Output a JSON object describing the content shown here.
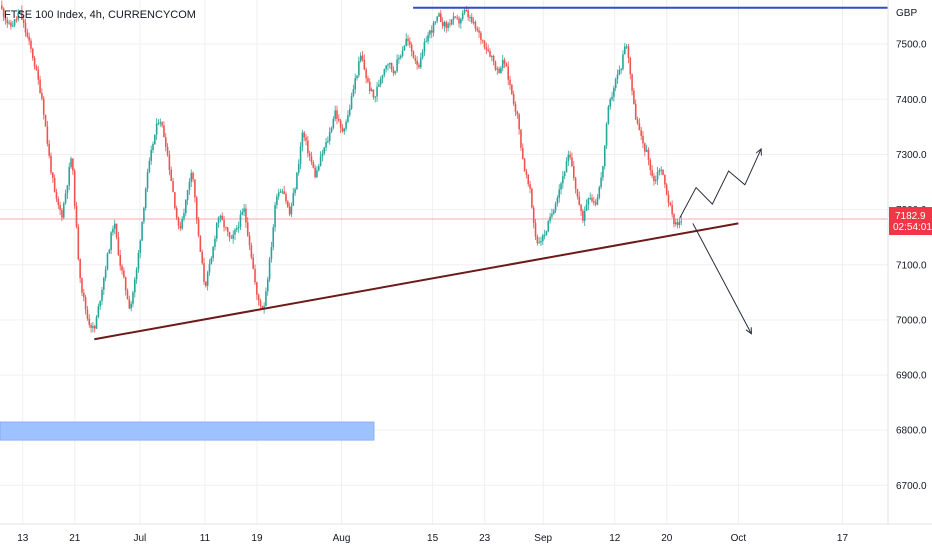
{
  "header": {
    "symbol_title": "FTSE 100 Index, 4h, CURRENCYCOM",
    "currency": "GBP"
  },
  "price_tag": {
    "value": "7182.9",
    "countdown": "02:54:01",
    "color": "#f23645"
  },
  "colors": {
    "up": "#26a69a",
    "down": "#ef5350",
    "trendline": "#6d1a1a",
    "resistance": "#2b4fc8",
    "zone": "#9ec1ff",
    "projection": "#2a2e39",
    "grid": "#eef0f3"
  },
  "chart_data": {
    "type": "candlestick",
    "title": "FTSE 100 Index, 4h, CURRENCYCOM",
    "ylim": [
      6630,
      7580
    ],
    "yticks": [
      7500,
      7400,
      7300,
      7200,
      7100,
      7000,
      6900,
      6800,
      6700
    ],
    "ytick_labels": [
      "7500.0",
      "7400.0",
      "7300.0",
      "7200.0",
      "7100.0",
      "7000.0",
      "6900.0",
      "6800.0",
      "6700.0"
    ],
    "xtick_labels": [
      {
        "label": "13",
        "t": 0
      },
      {
        "label": "21",
        "t": 8
      },
      {
        "label": "Jul",
        "t": 18
      },
      {
        "label": "11",
        "t": 28
      },
      {
        "label": "19",
        "t": 36
      },
      {
        "label": "Aug",
        "t": 49
      },
      {
        "label": "15",
        "t": 63
      },
      {
        "label": "23",
        "t": 71
      },
      {
        "label": "Sep",
        "t": 80
      },
      {
        "label": "12",
        "t": 91
      },
      {
        "label": "20",
        "t": 99
      },
      {
        "label": "Oct",
        "t": 110
      },
      {
        "label": "17",
        "t": 126
      }
    ],
    "t_range": [
      -3.5,
      133
    ],
    "price_path": [
      [
        -3.5,
        7570
      ],
      [
        -2,
        7530
      ],
      [
        -1,
        7545
      ],
      [
        -0.5,
        7560
      ],
      [
        1.5,
        7480
      ],
      [
        3,
        7400
      ],
      [
        4,
        7300
      ],
      [
        5,
        7220
      ],
      [
        6,
        7190
      ],
      [
        7,
        7260
      ],
      [
        7.5,
        7300
      ],
      [
        8.5,
        7120
      ],
      [
        9,
        7060
      ],
      [
        10,
        7000
      ],
      [
        11,
        6980
      ],
      [
        12.5,
        7080
      ],
      [
        14,
        7180
      ],
      [
        15,
        7100
      ],
      [
        16.5,
        7020
      ],
      [
        17.5,
        7090
      ],
      [
        19,
        7250
      ],
      [
        20,
        7320
      ],
      [
        21,
        7370
      ],
      [
        22,
        7320
      ],
      [
        23,
        7240
      ],
      [
        24,
        7160
      ],
      [
        25,
        7210
      ],
      [
        26,
        7280
      ],
      [
        27,
        7150
      ],
      [
        28,
        7060
      ],
      [
        29,
        7110
      ],
      [
        30,
        7190
      ],
      [
        31,
        7170
      ],
      [
        32,
        7140
      ],
      [
        33,
        7170
      ],
      [
        34,
        7200
      ],
      [
        35,
        7130
      ],
      [
        36,
        7040
      ],
      [
        37,
        7020
      ],
      [
        38,
        7110
      ],
      [
        39,
        7230
      ],
      [
        40,
        7240
      ],
      [
        41,
        7190
      ],
      [
        42,
        7250
      ],
      [
        43,
        7340
      ],
      [
        44,
        7300
      ],
      [
        45,
        7260
      ],
      [
        46,
        7300
      ],
      [
        47,
        7330
      ],
      [
        48,
        7380
      ],
      [
        49,
        7340
      ],
      [
        50,
        7370
      ],
      [
        51,
        7430
      ],
      [
        52,
        7480
      ],
      [
        53,
        7430
      ],
      [
        54,
        7400
      ],
      [
        55,
        7440
      ],
      [
        56,
        7470
      ],
      [
        57,
        7450
      ],
      [
        58,
        7480
      ],
      [
        59,
        7510
      ],
      [
        60,
        7480
      ],
      [
        61,
        7460
      ],
      [
        62,
        7510
      ],
      [
        63,
        7530
      ],
      [
        64,
        7550
      ],
      [
        65,
        7530
      ],
      [
        66,
        7545
      ],
      [
        67,
        7540
      ],
      [
        68,
        7560
      ],
      [
        69,
        7540
      ],
      [
        70,
        7520
      ],
      [
        71,
        7500
      ],
      [
        72,
        7480
      ],
      [
        73,
        7450
      ],
      [
        74,
        7470
      ],
      [
        75,
        7420
      ],
      [
        76,
        7370
      ],
      [
        77,
        7280
      ],
      [
        78,
        7230
      ],
      [
        78.5,
        7180
      ],
      [
        79,
        7140
      ],
      [
        80,
        7150
      ],
      [
        81,
        7180
      ],
      [
        82,
        7220
      ],
      [
        83,
        7260
      ],
      [
        84,
        7300
      ],
      [
        85,
        7240
      ],
      [
        86,
        7180
      ],
      [
        87,
        7230
      ],
      [
        88,
        7210
      ],
      [
        89,
        7260
      ],
      [
        90,
        7380
      ],
      [
        91,
        7430
      ],
      [
        92,
        7460
      ],
      [
        92.5,
        7500
      ],
      [
        93,
        7490
      ],
      [
        94,
        7380
      ],
      [
        95,
        7330
      ],
      [
        96,
        7300
      ],
      [
        97,
        7250
      ],
      [
        98,
        7280
      ],
      [
        99,
        7230
      ],
      [
        100,
        7180
      ],
      [
        101,
        7175
      ],
      [
        101.5,
        7185
      ]
    ],
    "trendline": {
      "start": {
        "t": 11,
        "y": 6965
      },
      "end": {
        "t": 110,
        "y": 7175
      }
    },
    "resistance_line": {
      "t_start": 60,
      "t_end": 133,
      "y": 7566
    },
    "demand_zone": {
      "t_start": -3.5,
      "t_end": 54,
      "y_low": 6782,
      "y_high": 6815
    },
    "current_price_line": {
      "y": 7182.9
    },
    "projection_up": [
      [
        101,
        7185
      ],
      [
        103.5,
        7240
      ],
      [
        106,
        7210
      ],
      [
        108.5,
        7270
      ],
      [
        111,
        7245
      ],
      [
        113.5,
        7310
      ]
    ],
    "projection_down": [
      [
        103,
        7175
      ],
      [
        112,
        6975
      ]
    ]
  }
}
